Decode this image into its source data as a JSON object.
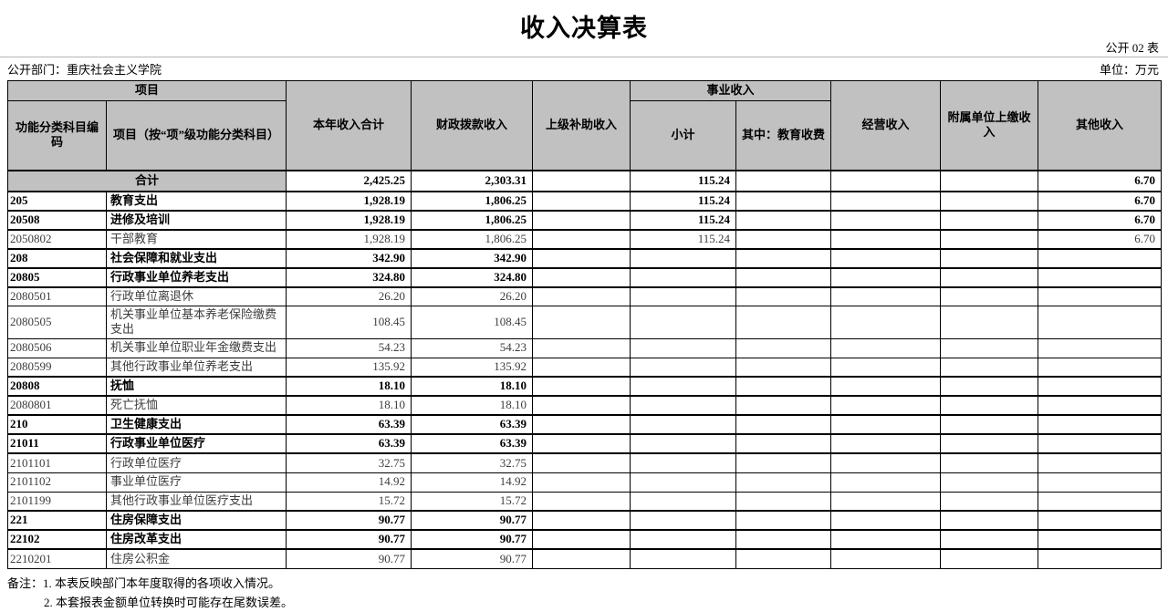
{
  "page": {
    "title": "收入决算表",
    "sheet_label": "公开 02 表",
    "department_label": "公开部门：重庆社会主义学院",
    "unit_label": "单位：万元",
    "notes": {
      "note1": "备注：1. 本表反映部门本年度取得的各项收入情况。",
      "note2": "2. 本套报表金额单位转换时可能存在尾数误差。"
    }
  },
  "colors": {
    "header_bg": "#c1c1c1",
    "border": "#000000",
    "detail_text": "#3d3d3d"
  },
  "table": {
    "header": {
      "group_item": "项目",
      "col_code": "功能分类科目编码",
      "col_item": "项目（按“项”级功能分类科目）",
      "col_year_total": "本年收入合计",
      "col_fiscal_appropriation": "财政拨款收入",
      "col_superior_subsidy": "上级补助收入",
      "group_business_income": "事业收入",
      "col_subtotal": "小计",
      "col_education_fee": "其中：教育收费",
      "col_operating_income": "经营收入",
      "col_affiliated_remit": "附属单位上缴收入",
      "col_other_income": "其他收入"
    },
    "rows": [
      {
        "code": "",
        "name": "合计",
        "style": "total",
        "values": [
          "2,425.25",
          "2,303.31",
          "",
          "115.24",
          "",
          "",
          "",
          "6.70"
        ]
      },
      {
        "code": "205",
        "name": "教育支出",
        "style": "bold",
        "values": [
          "1,928.19",
          "1,806.25",
          "",
          "115.24",
          "",
          "",
          "",
          "6.70"
        ]
      },
      {
        "code": "20508",
        "name": "进修及培训",
        "style": "bold",
        "values": [
          "1,928.19",
          "1,806.25",
          "",
          "115.24",
          "",
          "",
          "",
          "6.70"
        ]
      },
      {
        "code": "2050802",
        "name": "干部教育",
        "style": "detail",
        "values": [
          "1,928.19",
          "1,806.25",
          "",
          "115.24",
          "",
          "",
          "",
          "6.70"
        ]
      },
      {
        "code": "208",
        "name": "社会保障和就业支出",
        "style": "bold",
        "values": [
          "342.90",
          "342.90",
          "",
          "",
          "",
          "",
          "",
          ""
        ]
      },
      {
        "code": "20805",
        "name": "行政事业单位养老支出",
        "style": "bold",
        "values": [
          "324.80",
          "324.80",
          "",
          "",
          "",
          "",
          "",
          ""
        ]
      },
      {
        "code": "2080501",
        "name": "行政单位离退休",
        "style": "detail",
        "values": [
          "26.20",
          "26.20",
          "",
          "",
          "",
          "",
          "",
          ""
        ]
      },
      {
        "code": "2080505",
        "name": "机关事业单位基本养老保险缴费支出",
        "style": "detail",
        "values": [
          "108.45",
          "108.45",
          "",
          "",
          "",
          "",
          "",
          ""
        ]
      },
      {
        "code": "2080506",
        "name": "机关事业单位职业年金缴费支出",
        "style": "detail",
        "values": [
          "54.23",
          "54.23",
          "",
          "",
          "",
          "",
          "",
          ""
        ]
      },
      {
        "code": "2080599",
        "name": "其他行政事业单位养老支出",
        "style": "detail",
        "values": [
          "135.92",
          "135.92",
          "",
          "",
          "",
          "",
          "",
          ""
        ]
      },
      {
        "code": "20808",
        "name": "抚恤",
        "style": "bold",
        "values": [
          "18.10",
          "18.10",
          "",
          "",
          "",
          "",
          "",
          ""
        ]
      },
      {
        "code": "2080801",
        "name": "死亡抚恤",
        "style": "detail",
        "values": [
          "18.10",
          "18.10",
          "",
          "",
          "",
          "",
          "",
          ""
        ]
      },
      {
        "code": "210",
        "name": "卫生健康支出",
        "style": "bold",
        "values": [
          "63.39",
          "63.39",
          "",
          "",
          "",
          "",
          "",
          ""
        ]
      },
      {
        "code": "21011",
        "name": "行政事业单位医疗",
        "style": "bold",
        "values": [
          "63.39",
          "63.39",
          "",
          "",
          "",
          "",
          "",
          ""
        ]
      },
      {
        "code": "2101101",
        "name": "行政单位医疗",
        "style": "detail",
        "values": [
          "32.75",
          "32.75",
          "",
          "",
          "",
          "",
          "",
          ""
        ]
      },
      {
        "code": "2101102",
        "name": "事业单位医疗",
        "style": "detail",
        "values": [
          "14.92",
          "14.92",
          "",
          "",
          "",
          "",
          "",
          ""
        ]
      },
      {
        "code": "2101199",
        "name": "其他行政事业单位医疗支出",
        "style": "detail",
        "values": [
          "15.72",
          "15.72",
          "",
          "",
          "",
          "",
          "",
          ""
        ]
      },
      {
        "code": "221",
        "name": "住房保障支出",
        "style": "bold",
        "values": [
          "90.77",
          "90.77",
          "",
          "",
          "",
          "",
          "",
          ""
        ]
      },
      {
        "code": "22102",
        "name": "住房改革支出",
        "style": "bold",
        "values": [
          "90.77",
          "90.77",
          "",
          "",
          "",
          "",
          "",
          ""
        ]
      },
      {
        "code": "2210201",
        "name": "住房公积金",
        "style": "detail",
        "values": [
          "90.77",
          "90.77",
          "",
          "",
          "",
          "",
          "",
          ""
        ]
      }
    ]
  }
}
